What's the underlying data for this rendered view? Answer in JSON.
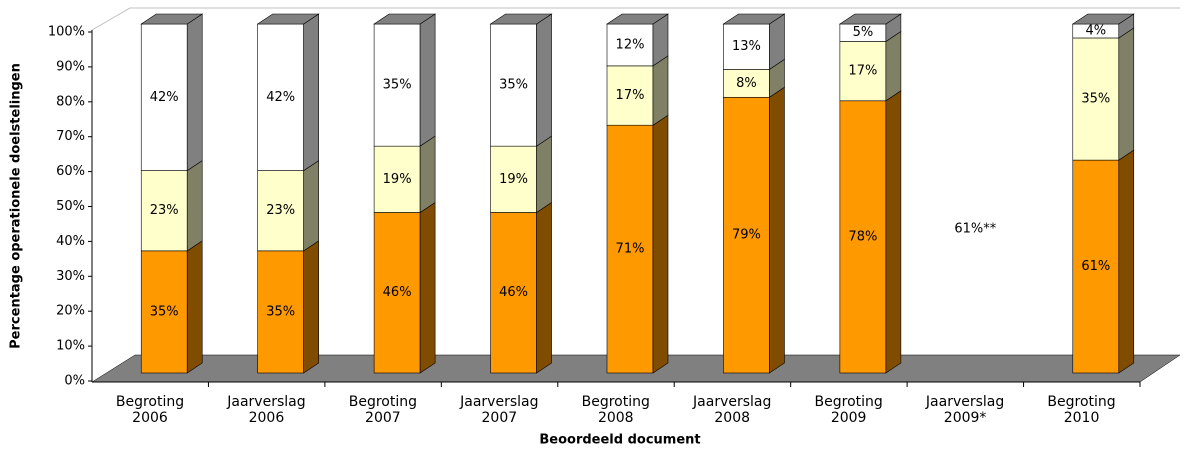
{
  "chart_data": {
    "type": "bar3d-stacked",
    "x_label": "Beoordeeld document",
    "y_label": "Percentage operationele doelstelingen",
    "categories": [
      "Begroting\n2006",
      "Jaarverslag\n2006",
      "Begroting\n2007",
      "Jaarverslag\n2007",
      "Begroting\n2008",
      "Jaarverslag\n2008",
      "Begroting\n2009",
      "Jaarverslag\n2009*",
      "Begroting\n2010"
    ],
    "series": [
      {
        "color": "#ff9900",
        "side_color": "#804c00",
        "values": [
          35,
          35,
          46,
          46,
          71,
          79,
          78,
          null,
          61
        ],
        "value_labels": [
          "35%",
          "35%",
          "46%",
          "46%",
          "71%",
          "79%",
          "78%",
          null,
          "61%"
        ]
      },
      {
        "color": "#ffffcc",
        "side_color": "#808066",
        "values": [
          23,
          23,
          19,
          19,
          17,
          8,
          17,
          null,
          35
        ],
        "value_labels": [
          "23%",
          "23%",
          "19%",
          "19%",
          "17%",
          "8%",
          "17%",
          null,
          "35%"
        ]
      },
      {
        "color": "#ffffff",
        "side_color": "#808080",
        "values": [
          42,
          42,
          35,
          35,
          12,
          13,
          5,
          null,
          4
        ],
        "value_labels": [
          "42%",
          "42%",
          "35%",
          "35%",
          "12%",
          "13%",
          "5%",
          null,
          "4%"
        ]
      }
    ],
    "annotation": "61%**",
    "ylim": [
      0,
      100
    ],
    "yticks": [
      {
        "value": 0,
        "label": "0%"
      },
      {
        "value": 10,
        "label": "10%"
      },
      {
        "value": 20,
        "label": "20%"
      },
      {
        "value": 30,
        "label": "30%"
      },
      {
        "value": 40,
        "label": "40%"
      },
      {
        "value": 50,
        "label": "50%"
      },
      {
        "value": 60,
        "label": "60%"
      },
      {
        "value": 70,
        "label": "70%"
      },
      {
        "value": 80,
        "label": "80%"
      },
      {
        "value": 90,
        "label": "90%"
      },
      {
        "value": 100,
        "label": "100%"
      }
    ]
  }
}
